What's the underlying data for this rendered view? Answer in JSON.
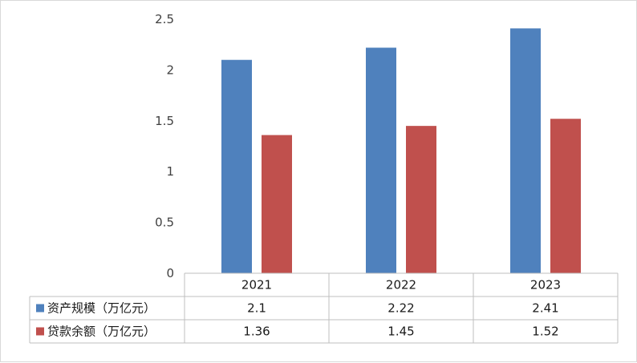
{
  "chart_data": {
    "type": "bar",
    "categories": [
      "2021",
      "2022",
      "2023"
    ],
    "series": [
      {
        "name": "资产规模（万亿元）",
        "values": [
          2.1,
          2.22,
          2.41
        ],
        "display": [
          "2.1",
          "2.22",
          "2.41"
        ],
        "color": "#4f81bd"
      },
      {
        "name": "贷款余额（万亿元）",
        "values": [
          1.36,
          1.45,
          1.52
        ],
        "display": [
          "1.36",
          "1.45",
          "1.52"
        ],
        "color": "#c0504d"
      }
    ],
    "y_ticks": [
      "0",
      "0.5",
      "1",
      "1.5",
      "2",
      "2.5"
    ],
    "ylim": [
      0,
      2.5
    ],
    "grid": false,
    "legend": "data-table-below",
    "title": "",
    "xlabel": "",
    "ylabel": ""
  }
}
